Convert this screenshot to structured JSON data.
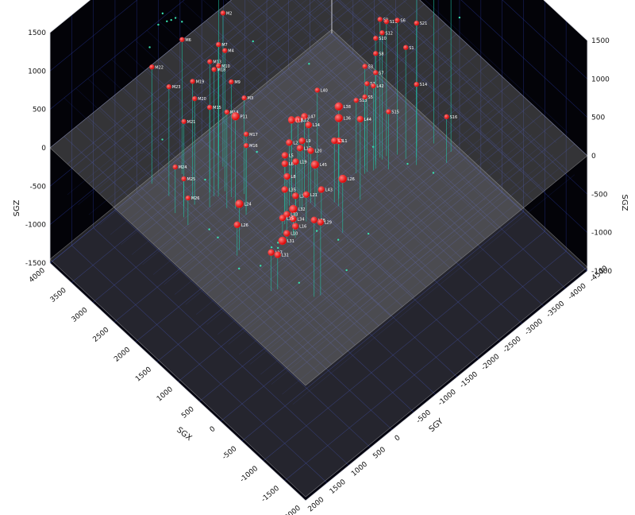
{
  "chart_data": {
    "type": "scatter",
    "projection": "3d",
    "xlabel": "SGX",
    "ylabel": "SGY",
    "zlabel": "SGZ",
    "xlim": [
      -2000,
      4000
    ],
    "ylim": [
      -4500,
      2000
    ],
    "zlim": [
      -1500,
      1500
    ],
    "x_ticks": [
      "-2000",
      "-1500",
      "-1000",
      "-500",
      "0",
      "500",
      "1000",
      "1500",
      "2000",
      "2500",
      "3000",
      "3500",
      "4000"
    ],
    "y_ticks": [
      "2000",
      "1500",
      "1000",
      "500",
      "0",
      "-500",
      "-1000",
      "-1500",
      "-2000",
      "-2500",
      "-3000",
      "-3500",
      "-4000",
      "-4500"
    ],
    "z_ticks": [
      "1500",
      "1000",
      "500",
      "0",
      "-500",
      "-1000",
      "-1500"
    ],
    "background": "#000000",
    "plane_color": "#9a9a9a",
    "grid_color": "#2a3aa8",
    "marker_color": "#ff1a1a",
    "stem_color": "#1fc7a8",
    "small_point_color": "#38e0b0",
    "grid": true,
    "labeled_points": [
      {
        "label": "M1",
        "x": 3600,
        "y": -1500,
        "z": 800,
        "r": 3
      },
      {
        "label": "M2",
        "x": 3400,
        "y": -1400,
        "z": 500,
        "r": 3
      },
      {
        "label": "M6",
        "x": 3750,
        "y": -800,
        "z": 250,
        "r": 3
      },
      {
        "label": "M7",
        "x": 3150,
        "y": -1050,
        "z": 380,
        "r": 3
      },
      {
        "label": "M13",
        "x": 3200,
        "y": -900,
        "z": 200,
        "r": 3
      },
      {
        "label": "M4",
        "x": 3050,
        "y": -1100,
        "z": 330,
        "r": 3
      },
      {
        "label": "M10",
        "x": 3050,
        "y": -950,
        "z": 200,
        "r": 3
      },
      {
        "label": "M18",
        "x": 3100,
        "y": -900,
        "z": 150,
        "r": 3
      },
      {
        "label": "M9",
        "x": 2900,
        "y": -1100,
        "z": 0,
        "r": 3
      },
      {
        "label": "M3",
        "x": 2800,
        "y": -1300,
        "z": -250,
        "r": 3
      },
      {
        "label": "M19",
        "x": 3300,
        "y": -600,
        "z": 30,
        "r": 3
      },
      {
        "label": "M20",
        "x": 3200,
        "y": -550,
        "z": -120,
        "r": 3
      },
      {
        "label": "M22",
        "x": 3950,
        "y": -300,
        "z": 20,
        "r": 3
      },
      {
        "label": "M23",
        "x": 3600,
        "y": -350,
        "z": -80,
        "r": 3
      },
      {
        "label": "M15",
        "x": 3000,
        "y": -700,
        "z": -200,
        "r": 3
      },
      {
        "label": "M14",
        "x": 2800,
        "y": -900,
        "z": -250,
        "r": 3
      },
      {
        "label": "P11",
        "x": 2700,
        "y": -1000,
        "z": -300,
        "r": 5
      },
      {
        "label": "M21",
        "x": 3300,
        "y": -400,
        "z": -400,
        "r": 3
      },
      {
        "label": "M17",
        "x": 2550,
        "y": -1100,
        "z": -500,
        "r": 3
      },
      {
        "label": "M16",
        "x": 2500,
        "y": -1050,
        "z": -600,
        "r": 3
      },
      {
        "label": "M24",
        "x": 3300,
        "y": -200,
        "z": -900,
        "r": 3
      },
      {
        "label": "M25",
        "x": 3150,
        "y": -250,
        "z": -1000,
        "r": 3
      },
      {
        "label": "M26",
        "x": 3000,
        "y": -200,
        "z": -1150,
        "r": 3
      },
      {
        "label": "L40",
        "x": 2000,
        "y": -2200,
        "z": -150,
        "r": 3
      },
      {
        "label": "L38",
        "x": 1700,
        "y": -2400,
        "z": -300,
        "r": 5
      },
      {
        "label": "L47",
        "x": 2100,
        "y": -2000,
        "z": -450,
        "r": 4
      },
      {
        "label": "L13",
        "x": 2250,
        "y": -1850,
        "z": -500,
        "r": 4
      },
      {
        "label": "L12",
        "x": 2200,
        "y": -1950,
        "z": -520,
        "r": 4
      },
      {
        "label": "L11",
        "x": 2300,
        "y": -1900,
        "z": -560,
        "r": 4
      },
      {
        "label": "L14",
        "x": 2050,
        "y": -2050,
        "z": -560,
        "r": 4
      },
      {
        "label": "L9",
        "x": 1950,
        "y": -1800,
        "z": -600,
        "r": 4
      },
      {
        "label": "L36",
        "x": 1750,
        "y": -2450,
        "z": -500,
        "r": 5
      },
      {
        "label": "L44",
        "x": 1450,
        "y": -2650,
        "z": -450,
        "r": 4
      },
      {
        "label": "L1",
        "x": 1600,
        "y": -2300,
        "z": -650,
        "r": 4
      },
      {
        "label": "L3",
        "x": 1700,
        "y": -2300,
        "z": -700,
        "r": 4
      },
      {
        "label": "L2",
        "x": 2150,
        "y": -1700,
        "z": -680,
        "r": 4
      },
      {
        "label": "L17",
        "x": 2000,
        "y": -1800,
        "z": -720,
        "r": 4
      },
      {
        "label": "L20",
        "x": 1950,
        "y": -2000,
        "z": -820,
        "r": 4
      },
      {
        "label": "L5",
        "x": 2150,
        "y": -1600,
        "z": -800,
        "r": 4
      },
      {
        "label": "L6",
        "x": 2100,
        "y": -1550,
        "z": -860,
        "r": 4
      },
      {
        "label": "L19",
        "x": 2050,
        "y": -1750,
        "z": -900,
        "r": 4
      },
      {
        "label": "L45",
        "x": 1850,
        "y": -2000,
        "z": -950,
        "r": 5
      },
      {
        "label": "L8",
        "x": 2050,
        "y": -1550,
        "z": -1000,
        "r": 4
      },
      {
        "label": "L35",
        "x": 1950,
        "y": -1400,
        "z": -1050,
        "r": 4
      },
      {
        "label": "L39",
        "x": 1800,
        "y": -1500,
        "z": -1100,
        "r": 4
      },
      {
        "label": "L21",
        "x": 1750,
        "y": -1700,
        "z": -1150,
        "r": 4
      },
      {
        "label": "L43",
        "x": 1600,
        "y": -1900,
        "z": -1100,
        "r": 4
      },
      {
        "label": "L32",
        "x": 1750,
        "y": -1400,
        "z": -1200,
        "r": 5
      },
      {
        "label": "L33",
        "x": 1800,
        "y": -1300,
        "z": -1250,
        "r": 4
      },
      {
        "label": "L34",
        "x": 1700,
        "y": -1350,
        "z": -1280,
        "r": 4
      },
      {
        "label": "L15",
        "x": 1850,
        "y": -1250,
        "z": -1300,
        "r": 4
      },
      {
        "label": "L16",
        "x": 1650,
        "y": -1350,
        "z": -1350,
        "r": 4
      },
      {
        "label": "L10",
        "x": 1700,
        "y": -1200,
        "z": -1400,
        "r": 4
      },
      {
        "label": "L31",
        "x": 1700,
        "y": -1100,
        "z": -1450,
        "r": 5
      },
      {
        "label": "L24",
        "x": 2100,
        "y": -500,
        "z": -900,
        "r": 5
      },
      {
        "label": "L26",
        "x": 2050,
        "y": -400,
        "z": -1100,
        "r": 4
      },
      {
        "label": "L27",
        "x": 1200,
        "y": -350,
        "z": -1000,
        "r": 4
      },
      {
        "label": "L31",
        "x": 1150,
        "y": -450,
        "z": -1050,
        "r": 4
      },
      {
        "label": "L28",
        "x": 650,
        "y": -800,
        "z": -500,
        "r": 4
      },
      {
        "label": "L29",
        "x": 600,
        "y": -900,
        "z": -550,
        "r": 4
      },
      {
        "label": "L26",
        "x": 1200,
        "y": -2000,
        "z": -800,
        "r": 5
      },
      {
        "label": "S4",
        "x": 1400,
        "y": -4300,
        "z": 900,
        "r": 3
      },
      {
        "label": "S17",
        "x": 1550,
        "y": -4050,
        "z": 700,
        "r": 4
      },
      {
        "label": "S19",
        "x": 1100,
        "y": -4400,
        "z": 650,
        "r": 3
      },
      {
        "label": "S21",
        "x": 1400,
        "y": -3900,
        "z": 250,
        "r": 3
      },
      {
        "label": "S9",
        "x": 1800,
        "y": -3450,
        "z": 300,
        "r": 3
      },
      {
        "label": "S11",
        "x": 1750,
        "y": -3550,
        "z": 250,
        "r": 3
      },
      {
        "label": "S6",
        "x": 1650,
        "y": -3700,
        "z": 250,
        "r": 3
      },
      {
        "label": "S12",
        "x": 1750,
        "y": -3450,
        "z": 150,
        "r": 3
      },
      {
        "label": "S10",
        "x": 1800,
        "y": -3350,
        "z": 100,
        "r": 3
      },
      {
        "label": "S8",
        "x": 1750,
        "y": -3300,
        "z": -50,
        "r": 3
      },
      {
        "label": "S1",
        "x": 1500,
        "y": -3750,
        "z": -50,
        "r": 3
      },
      {
        "label": "S3",
        "x": 1850,
        "y": -3150,
        "z": -200,
        "r": 3
      },
      {
        "label": "S7",
        "x": 1700,
        "y": -3250,
        "z": -250,
        "r": 3
      },
      {
        "label": "S2",
        "x": 1750,
        "y": -3100,
        "z": -350,
        "r": 3
      },
      {
        "label": "S13",
        "x": 1850,
        "y": -2950,
        "z": -550,
        "r": 3
      },
      {
        "label": "S5",
        "x": 1750,
        "y": -3050,
        "z": -500,
        "r": 3
      },
      {
        "label": "L42",
        "x": 1700,
        "y": -3200,
        "z": -400,
        "r": 3
      },
      {
        "label": "S14",
        "x": 1300,
        "y": -3800,
        "z": -450,
        "r": 3
      },
      {
        "label": "S15",
        "x": 1550,
        "y": -3400,
        "z": -750,
        "r": 3
      },
      {
        "label": "S16",
        "x": 1000,
        "y": -4200,
        "z": -900,
        "r": 3
      }
    ],
    "background_points": [
      {
        "x": 3800,
        "y": -500,
        "z": 600
      },
      {
        "x": 3700,
        "y": -600,
        "z": 650
      },
      {
        "x": 3850,
        "y": -450,
        "z": 700
      },
      {
        "x": 3900,
        "y": -400,
        "z": 550
      },
      {
        "x": 3750,
        "y": -550,
        "z": 620
      },
      {
        "x": 3650,
        "y": -700,
        "z": 580
      },
      {
        "x": 3950,
        "y": -250,
        "z": 300
      },
      {
        "x": 2500,
        "y": -200,
        "z": -1300
      },
      {
        "x": 2400,
        "y": -300,
        "z": -1400
      },
      {
        "x": 1800,
        "y": -200,
        "z": -1450
      },
      {
        "x": 1500,
        "y": -400,
        "z": -1350
      },
      {
        "x": 900,
        "y": -700,
        "z": -1400
      },
      {
        "x": 1300,
        "y": -1500,
        "z": -1300
      },
      {
        "x": 1100,
        "y": -1800,
        "z": -1450
      },
      {
        "x": 800,
        "y": -2200,
        "z": -1400
      },
      {
        "x": 1600,
        "y": -900,
        "z": -1400
      },
      {
        "x": 1650,
        "y": -950,
        "z": -1380
      },
      {
        "x": 1700,
        "y": -850,
        "z": -1420
      },
      {
        "x": 1200,
        "y": -4300,
        "z": 700
      },
      {
        "x": 1300,
        "y": -4200,
        "z": 760
      },
      {
        "x": 1050,
        "y": -4450,
        "z": 600
      },
      {
        "x": 900,
        "y": -4400,
        "z": 350
      },
      {
        "x": 2200,
        "y": -4200,
        "z": 1200
      },
      {
        "x": 2600,
        "y": -3800,
        "z": 1300
      },
      {
        "x": 3100,
        "y": -3000,
        "z": 1350
      },
      {
        "x": 3400,
        "y": -2200,
        "z": 1300
      },
      {
        "x": 3600,
        "y": -1800,
        "z": 1200
      },
      {
        "x": 2900,
        "y": -2600,
        "z": 1400
      },
      {
        "x": 2000,
        "y": -3500,
        "z": 900
      },
      {
        "x": 3300,
        "y": -1700,
        "z": 900
      },
      {
        "x": 2400,
        "y": -1200,
        "z": -700
      },
      {
        "x": 2600,
        "y": -2600,
        "z": -300
      },
      {
        "x": 1400,
        "y": -2900,
        "z": -900
      },
      {
        "x": 1000,
        "y": -3300,
        "z": -1100
      },
      {
        "x": 700,
        "y": -3600,
        "z": -1200
      },
      {
        "x": 600,
        "y": -1500,
        "z": -1450
      },
      {
        "x": 2800,
        "y": -400,
        "z": -900
      },
      {
        "x": 3500,
        "y": -100,
        "z": -600
      },
      {
        "x": 3000,
        "y": -1700,
        "z": 200
      }
    ]
  }
}
